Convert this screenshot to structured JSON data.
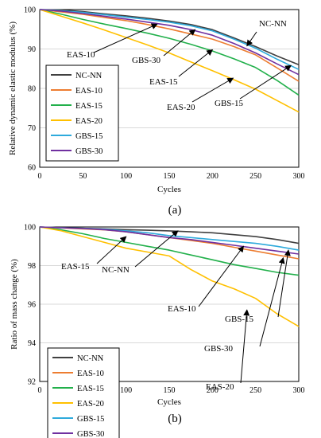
{
  "chart_data": [
    {
      "type": "line",
      "caption": "(a)",
      "xlabel": "Cycles",
      "ylabel": "Relative dynamic elastic modulus (%)",
      "xlim": [
        0,
        300
      ],
      "ylim": [
        60,
        100
      ],
      "xticks": [
        "0",
        "50",
        "100",
        "150",
        "200",
        "250",
        "300"
      ],
      "yticks": [
        "60",
        "70",
        "80",
        "90",
        "100"
      ],
      "grid": true,
      "legend_position": "bottom-left",
      "series": [
        {
          "name": "NC-NN",
          "color": "#404040",
          "x": [
            0,
            25,
            50,
            75,
            100,
            125,
            150,
            175,
            200,
            225,
            250,
            275,
            300
          ],
          "y": [
            100,
            99.9,
            99.5,
            98.9,
            98.4,
            97.8,
            97.1,
            96.2,
            94.9,
            92.8,
            90.6,
            88.2,
            86.0
          ]
        },
        {
          "name": "EAS-10",
          "color": "#ed7d31",
          "x": [
            0,
            25,
            50,
            75,
            100,
            125,
            150,
            175,
            200,
            225,
            250,
            275,
            300
          ],
          "y": [
            100,
            99.4,
            98.8,
            98.0,
            97.2,
            96.2,
            95.1,
            93.8,
            92.5,
            90.6,
            88.5,
            85.2,
            81.8
          ]
        },
        {
          "name": "EAS-15",
          "color": "#22b04b",
          "x": [
            0,
            25,
            50,
            75,
            100,
            125,
            150,
            175,
            200,
            225,
            250,
            275,
            300
          ],
          "y": [
            100,
            98.8,
            97.5,
            96.3,
            95.2,
            94.0,
            92.7,
            91.2,
            89.5,
            87.5,
            85.3,
            82.0,
            78.3
          ]
        },
        {
          "name": "EAS-20",
          "color": "#ffc000",
          "x": [
            0,
            25,
            50,
            75,
            100,
            125,
            150,
            175,
            200,
            225,
            250,
            275,
            300
          ],
          "y": [
            100,
            98.3,
            96.6,
            94.8,
            92.9,
            91.0,
            89.0,
            86.7,
            84.5,
            82.2,
            79.8,
            76.9,
            74.0
          ]
        },
        {
          "name": "GBS-15",
          "color": "#2eaadc",
          "x": [
            0,
            25,
            50,
            75,
            100,
            125,
            150,
            175,
            200,
            225,
            250,
            275,
            300
          ],
          "y": [
            100,
            99.7,
            99.3,
            98.7,
            98.1,
            97.5,
            96.8,
            95.9,
            94.6,
            92.5,
            90.2,
            87.4,
            84.8
          ]
        },
        {
          "name": "GBS-30",
          "color": "#7030a0",
          "x": [
            0,
            25,
            50,
            75,
            100,
            125,
            150,
            175,
            200,
            225,
            250,
            275,
            300
          ],
          "y": [
            100,
            99.6,
            99.0,
            98.3,
            97.6,
            96.8,
            96.0,
            94.9,
            93.5,
            91.4,
            89.0,
            86.2,
            83.5
          ]
        }
      ],
      "annotations": [
        {
          "text": "NC-NN",
          "arrow_to": [
            240,
            90.8
          ]
        },
        {
          "text": "EAS-10",
          "arrow_to": [
            136,
            96.3
          ]
        },
        {
          "text": "GBS-30",
          "arrow_to": [
            180,
            94.9
          ]
        },
        {
          "text": "EAS-15",
          "arrow_to": [
            200,
            89.8
          ]
        },
        {
          "text": "EAS-20",
          "arrow_to": [
            224,
            82.6
          ]
        },
        {
          "text": "GBS-15",
          "arrow_to": [
            291,
            85.8
          ]
        }
      ]
    },
    {
      "type": "line",
      "caption": "(b)",
      "xlabel": "Cycles",
      "ylabel": "Ratio of mass change (%)",
      "xlim": [
        0,
        300
      ],
      "ylim": [
        92,
        100
      ],
      "xticks": [
        "0",
        "50",
        "100",
        "150",
        "200",
        "250",
        "300"
      ],
      "yticks": [
        "92",
        "94",
        "96",
        "98",
        "100"
      ],
      "grid": true,
      "legend_position": "bottom-left",
      "series": [
        {
          "name": "NC-NN",
          "color": "#404040",
          "x": [
            0,
            25,
            50,
            75,
            100,
            125,
            150,
            175,
            200,
            225,
            250,
            275,
            300
          ],
          "y": [
            100,
            99.96,
            99.93,
            99.9,
            99.86,
            99.83,
            99.8,
            99.75,
            99.7,
            99.6,
            99.5,
            99.35,
            99.15
          ]
        },
        {
          "name": "EAS-10",
          "color": "#ed7d31",
          "x": [
            0,
            25,
            50,
            75,
            100,
            125,
            150,
            175,
            200,
            225,
            250,
            275,
            300
          ],
          "y": [
            100,
            99.95,
            99.9,
            99.85,
            99.75,
            99.6,
            99.45,
            99.3,
            99.15,
            98.95,
            98.75,
            98.55,
            98.35
          ]
        },
        {
          "name": "EAS-15",
          "color": "#22b04b",
          "x": [
            0,
            25,
            50,
            75,
            100,
            125,
            150,
            175,
            200,
            225,
            250,
            275,
            300
          ],
          "y": [
            100,
            99.85,
            99.65,
            99.4,
            99.2,
            99.0,
            98.8,
            98.55,
            98.3,
            98.05,
            97.85,
            97.65,
            97.5
          ]
        },
        {
          "name": "EAS-20",
          "color": "#ffc000",
          "x": [
            0,
            25,
            50,
            75,
            100,
            125,
            150,
            175,
            200,
            225,
            250,
            275,
            300
          ],
          "y": [
            100,
            99.8,
            99.5,
            99.2,
            98.9,
            98.7,
            98.5,
            97.8,
            97.2,
            96.8,
            96.3,
            95.5,
            94.85
          ]
        },
        {
          "name": "GBS-15",
          "color": "#2eaadc",
          "x": [
            0,
            25,
            50,
            75,
            100,
            125,
            150,
            175,
            200,
            225,
            250,
            275,
            300
          ],
          "y": [
            100,
            99.96,
            99.93,
            99.88,
            99.8,
            99.7,
            99.55,
            99.45,
            99.35,
            99.25,
            99.15,
            99.0,
            98.8
          ]
        },
        {
          "name": "GBS-30",
          "color": "#7030a0",
          "x": [
            0,
            25,
            50,
            75,
            100,
            125,
            150,
            175,
            200,
            225,
            250,
            275,
            300
          ],
          "y": [
            100,
            99.96,
            99.92,
            99.86,
            99.75,
            99.6,
            99.45,
            99.35,
            99.2,
            99.05,
            98.9,
            98.75,
            98.6
          ]
        }
      ],
      "annotations": [
        {
          "text": "EAS-15",
          "arrow_to": [
            100,
            99.5
          ]
        },
        {
          "text": "NC-NN",
          "arrow_to": [
            160,
            99.8
          ]
        },
        {
          "text": "EAS-10",
          "arrow_to": [
            236,
            99.0
          ]
        },
        {
          "text": "GBS-15",
          "arrow_to": [
            288,
            98.8
          ]
        },
        {
          "text": "GBS-30",
          "arrow_to": [
            282,
            98.4
          ]
        },
        {
          "text": "EAS-20",
          "arrow_to": [
            240,
            95.7
          ]
        }
      ]
    }
  ]
}
